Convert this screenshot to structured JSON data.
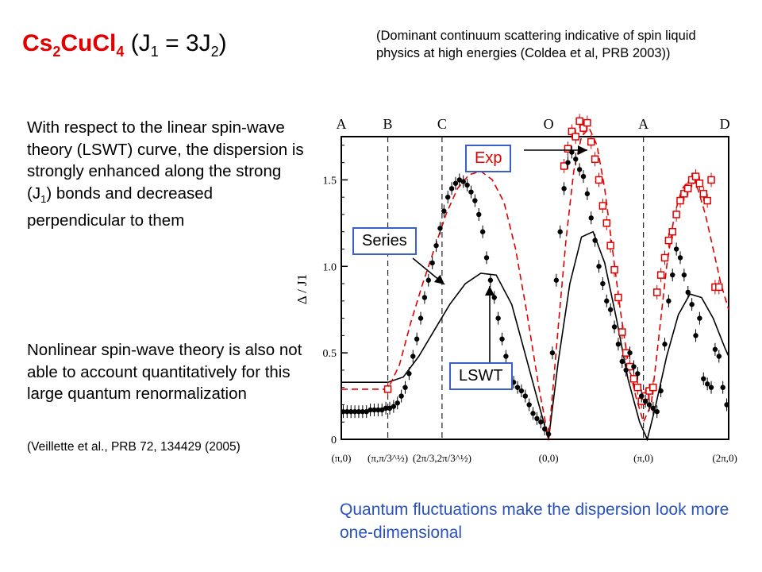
{
  "title": {
    "formula_parts": [
      "Cs",
      "2",
      "CuCl",
      "4"
    ],
    "coupling_parts": [
      "(J",
      "1",
      " = 3J",
      "2",
      ")"
    ]
  },
  "note": "(Dominant continuum scattering indicative of spin liquid physics at high energies (Coldea et al, PRB 2003))",
  "paragraph1_parts": [
    "With respect to the linear spin-wave theory (LSWT) curve, the dispersion is strongly enhanced along the strong (J",
    "1",
    ") bonds and decreased perpendicular to them"
  ],
  "paragraph2": "Nonlinear spin-wave theory is also not able to account quantitatively for this large quantum renormalization",
  "citation": "(Veillette et al., PRB 72, 134429 (2005)",
  "caption": "Quantum fluctuations make the dispersion look more one-dimensional",
  "callouts": {
    "exp": "Exp",
    "series": "Series",
    "lswt": "LSWT"
  },
  "colors": {
    "title_red": "#e00000",
    "caption_blue": "#2a52be",
    "callout_border": "#3a5fc8",
    "series_red": "#e00000",
    "data_black": "#000000"
  },
  "chart_data": {
    "type": "line",
    "ylabel": "Δ / J1",
    "ylim": [
      0,
      1.75
    ],
    "yticks": [
      0,
      0.5,
      1.0,
      1.5
    ],
    "xlim": [
      0,
      10
    ],
    "top_labels": [
      {
        "label": "A",
        "x": 0
      },
      {
        "label": "B",
        "x": 1.2
      },
      {
        "label": "C",
        "x": 2.6
      },
      {
        "label": "O",
        "x": 5.35
      },
      {
        "label": "A",
        "x": 7.8
      },
      {
        "label": "D",
        "x": 9.9
      }
    ],
    "bottom_labels": [
      {
        "label": "(π,0)",
        "x": 0
      },
      {
        "label": "(π,π/3^½)",
        "x": 1.2
      },
      {
        "label": "(2π/3,2π/3^½)",
        "x": 2.6
      },
      {
        "label": "(0,0)",
        "x": 5.35
      },
      {
        "label": "(π,0)",
        "x": 7.8
      },
      {
        "label": "(2π,0)",
        "x": 9.9
      }
    ],
    "vlines": [
      1.2,
      2.6,
      7.8
    ],
    "series": [
      {
        "name": "LSWT",
        "style": "solid-black",
        "x": [
          0,
          0.4,
          0.8,
          1.2,
          1.6,
          2.0,
          2.4,
          2.8,
          3.2,
          3.6,
          4.0,
          4.4,
          4.8,
          5.1,
          5.35,
          5.6,
          5.9,
          6.2,
          6.5,
          6.8,
          7.1,
          7.4,
          7.7,
          7.9,
          8.1,
          8.4,
          8.7,
          9.0,
          9.3,
          9.6,
          9.9,
          10.0
        ],
        "y": [
          0.33,
          0.33,
          0.33,
          0.33,
          0.36,
          0.48,
          0.63,
          0.78,
          0.9,
          0.96,
          0.95,
          0.78,
          0.45,
          0.2,
          0.0,
          0.45,
          0.9,
          1.17,
          1.2,
          1.02,
          0.7,
          0.35,
          0.1,
          0.0,
          0.18,
          0.48,
          0.72,
          0.84,
          0.82,
          0.7,
          0.53,
          0.48
        ]
      },
      {
        "name": "Series",
        "style": "dashed-red",
        "x": [
          0,
          0.4,
          0.8,
          1.2,
          1.5,
          1.8,
          2.1,
          2.4,
          2.7,
          3.0,
          3.3,
          3.6,
          3.9,
          4.2,
          4.5,
          4.8,
          5.1,
          5.35,
          5.6,
          5.8,
          6.0,
          6.2,
          6.4,
          6.6,
          6.8,
          7.0,
          7.2,
          7.4,
          7.6,
          7.8,
          8.0,
          8.2,
          8.4,
          8.6,
          8.8,
          9.0,
          9.2,
          9.4,
          9.6,
          9.8,
          10.0
        ],
        "y": [
          0.29,
          0.29,
          0.29,
          0.29,
          0.43,
          0.68,
          0.9,
          1.1,
          1.3,
          1.45,
          1.53,
          1.55,
          1.5,
          1.37,
          1.1,
          0.72,
          0.3,
          0.0,
          0.65,
          1.15,
          1.55,
          1.75,
          1.8,
          1.7,
          1.45,
          1.1,
          0.75,
          0.45,
          0.25,
          0.1,
          0.2,
          0.6,
          1.0,
          1.3,
          1.45,
          1.5,
          1.45,
          1.3,
          1.1,
          0.9,
          0.75
        ]
      },
      {
        "name": "Exp",
        "style": "red-open-squares",
        "x": [
          1.2,
          5.75,
          5.85,
          5.95,
          6.05,
          6.15,
          6.25,
          6.35,
          6.45,
          6.55,
          6.65,
          6.75,
          6.85,
          6.95,
          7.05,
          7.15,
          7.25,
          7.35,
          7.45,
          7.55,
          7.65,
          7.75,
          7.85,
          7.95,
          8.05,
          8.15,
          8.25,
          8.35,
          8.45,
          8.55,
          8.65,
          8.75,
          8.85,
          8.95,
          9.05,
          9.15,
          9.25,
          9.35,
          9.45,
          9.55,
          9.65,
          9.75
        ],
        "y": [
          0.29,
          1.58,
          1.68,
          1.78,
          1.75,
          1.84,
          1.8,
          1.83,
          1.72,
          1.62,
          1.5,
          1.35,
          1.25,
          1.12,
          0.98,
          0.82,
          0.62,
          0.5,
          0.42,
          0.35,
          0.3,
          0.22,
          0.25,
          0.28,
          0.3,
          0.85,
          0.95,
          1.05,
          1.15,
          1.2,
          1.3,
          1.38,
          1.42,
          1.45,
          1.5,
          1.52,
          1.48,
          1.42,
          1.38,
          1.5,
          0.88,
          0.88
        ]
      },
      {
        "name": "data",
        "style": "black-dots",
        "x": [
          0.05,
          0.15,
          0.25,
          0.35,
          0.45,
          0.55,
          0.65,
          0.75,
          0.85,
          0.95,
          1.05,
          1.15,
          1.25,
          1.35,
          1.45,
          1.55,
          1.65,
          1.75,
          1.85,
          1.95,
          2.05,
          2.15,
          2.25,
          2.35,
          2.45,
          2.55,
          2.65,
          2.75,
          2.85,
          2.95,
          3.05,
          3.15,
          3.25,
          3.35,
          3.45,
          3.55,
          3.65,
          3.75,
          3.85,
          3.95,
          4.05,
          4.15,
          4.25,
          4.35,
          4.45,
          4.55,
          4.65,
          4.75,
          4.85,
          4.95,
          5.05,
          5.15,
          5.25,
          5.35,
          5.45,
          5.55,
          5.65,
          5.75,
          5.85,
          5.95,
          6.05,
          6.15,
          6.25,
          6.35,
          6.45,
          6.55,
          6.65,
          6.75,
          6.85,
          6.95,
          7.05,
          7.15,
          7.25,
          7.35,
          7.45,
          7.55,
          7.65,
          7.75,
          7.85,
          7.95,
          8.05,
          8.15,
          8.25,
          8.35,
          8.45,
          8.55,
          8.65,
          8.75,
          8.85,
          8.95,
          9.05,
          9.15,
          9.25,
          9.35,
          9.45,
          9.55,
          9.65,
          9.75,
          9.85,
          9.95
        ],
        "y": [
          0.16,
          0.16,
          0.16,
          0.16,
          0.16,
          0.16,
          0.16,
          0.17,
          0.17,
          0.17,
          0.17,
          0.18,
          0.18,
          0.19,
          0.21,
          0.25,
          0.3,
          0.38,
          0.48,
          0.58,
          0.7,
          0.82,
          0.92,
          1.02,
          1.12,
          1.22,
          1.32,
          1.4,
          1.45,
          1.48,
          1.5,
          1.49,
          1.47,
          1.43,
          1.38,
          1.3,
          1.2,
          1.05,
          0.92,
          0.82,
          0.7,
          0.58,
          0.48,
          0.4,
          0.33,
          0.3,
          0.28,
          0.25,
          0.2,
          0.15,
          0.12,
          0.1,
          0.06,
          0.03,
          0.5,
          0.92,
          1.2,
          1.45,
          1.6,
          1.66,
          1.62,
          1.56,
          1.52,
          1.42,
          1.28,
          1.15,
          1.0,
          0.9,
          0.8,
          0.75,
          0.65,
          0.55,
          0.45,
          0.4,
          0.5,
          0.42,
          0.38,
          0.25,
          0.22,
          0.2,
          0.18,
          0.16,
          0.28,
          0.55,
          0.8,
          0.95,
          1.1,
          1.05,
          0.95,
          0.85,
          0.78,
          0.6,
          0.7,
          0.35,
          0.32,
          0.3,
          0.52,
          0.48,
          0.3,
          0.2
        ]
      }
    ]
  }
}
